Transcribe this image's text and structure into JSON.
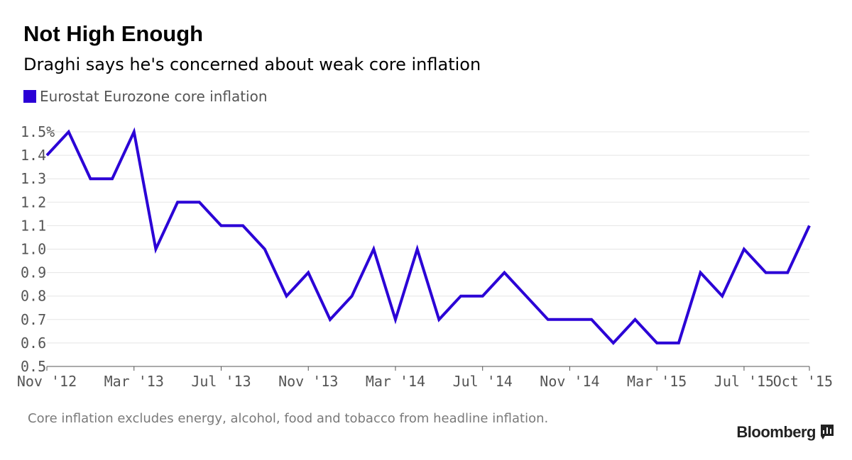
{
  "title": "Not High Enough",
  "subtitle": "Draghi says he's concerned about weak core inflation",
  "footnote": "Core inflation excludes energy, alcohol, food and tobacco from headline inflation.",
  "source": "Bloomberg",
  "colors": {
    "series": "#2b00d6",
    "grid": "#e5e5e5",
    "axis": "#555555",
    "tick_text": "#555555"
  },
  "chart_data": {
    "type": "line",
    "title": "Not High Enough",
    "subtitle": "Draghi says he's concerned about weak core inflation",
    "xlabel": "",
    "ylabel": "",
    "ylim": [
      0.5,
      1.5
    ],
    "yticks": [
      "1.5%",
      "1.4",
      "1.3",
      "1.2",
      "1.1",
      "1.0",
      "0.9",
      "0.8",
      "0.7",
      "0.6",
      "0.5"
    ],
    "ytick_values": [
      1.5,
      1.4,
      1.3,
      1.2,
      1.1,
      1.0,
      0.9,
      0.8,
      0.7,
      0.6,
      0.5
    ],
    "xticks": [
      {
        "label": "Nov '12",
        "index": 0
      },
      {
        "label": "Mar '13",
        "index": 4
      },
      {
        "label": "Jul '13",
        "index": 8
      },
      {
        "label": "Nov '13",
        "index": 12
      },
      {
        "label": "Mar '14",
        "index": 16
      },
      {
        "label": "Jul '14",
        "index": 20
      },
      {
        "label": "Nov '14",
        "index": 24
      },
      {
        "label": "Mar '15",
        "index": 28
      },
      {
        "label": "Jul '15",
        "index": 32
      },
      {
        "label": "Oct '15",
        "index": 35
      }
    ],
    "grid": true,
    "legend_position": "top-left",
    "series": [
      {
        "name": "Eurostat Eurozone core inflation",
        "color": "#2b00d6",
        "x": [
          "Nov '12",
          "Dec '12",
          "Jan '13",
          "Feb '13",
          "Mar '13",
          "Apr '13",
          "May '13",
          "Jun '13",
          "Jul '13",
          "Aug '13",
          "Sep '13",
          "Oct '13",
          "Nov '13",
          "Dec '13",
          "Jan '14",
          "Feb '14",
          "Mar '14",
          "Apr '14",
          "May '14",
          "Jun '14",
          "Jul '14",
          "Aug '14",
          "Sep '14",
          "Oct '14",
          "Nov '14",
          "Dec '14",
          "Jan '15",
          "Feb '15",
          "Mar '15",
          "Apr '15",
          "May '15",
          "Jun '15",
          "Jul '15",
          "Aug '15",
          "Sep '15",
          "Oct '15"
        ],
        "values": [
          1.4,
          1.5,
          1.3,
          1.3,
          1.5,
          1.0,
          1.2,
          1.2,
          1.1,
          1.1,
          1.0,
          0.8,
          0.9,
          0.7,
          0.8,
          1.0,
          0.7,
          1.0,
          0.7,
          0.8,
          0.8,
          0.9,
          0.8,
          0.7,
          0.7,
          0.7,
          0.6,
          0.7,
          0.6,
          0.6,
          0.9,
          0.8,
          1.0,
          0.9,
          0.9,
          1.1
        ]
      }
    ]
  }
}
